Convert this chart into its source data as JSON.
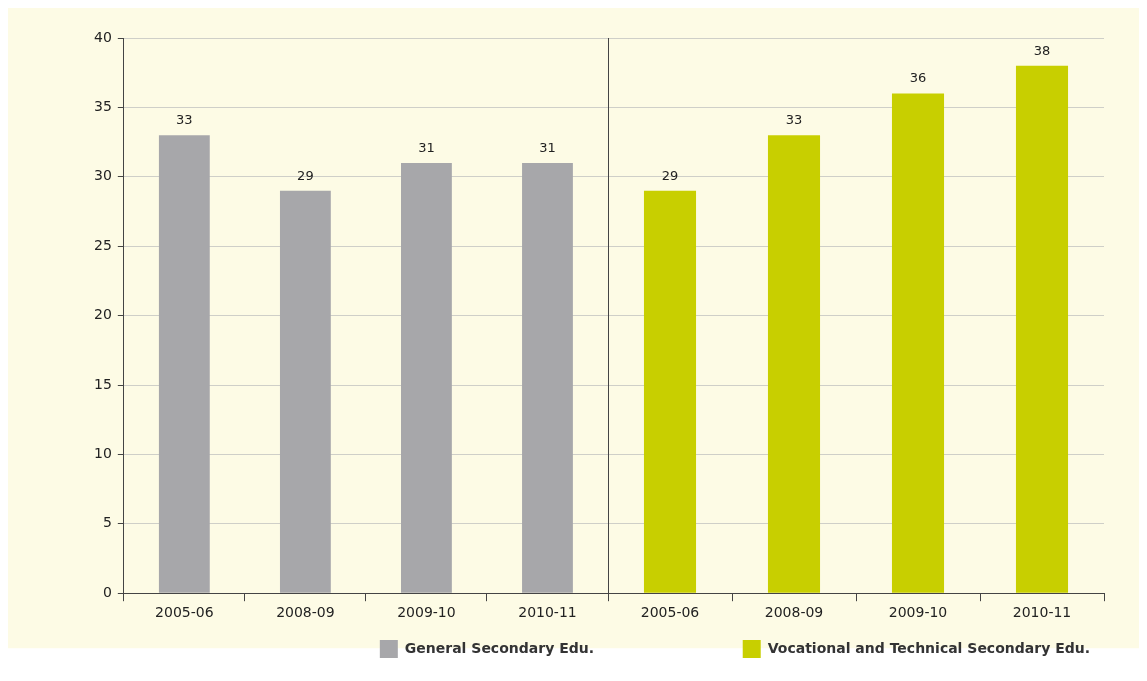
{
  "chart_data": [
    {
      "type": "bar",
      "categories": [
        "2005-06",
        "2008-09",
        "2009-10",
        "2010-11"
      ],
      "series": [
        {
          "name": "General Secondary Edu.",
          "color": "#a7a7aa",
          "values": [
            33,
            29,
            31,
            31
          ]
        }
      ],
      "ylim": [
        0,
        40
      ],
      "yticks": [
        0,
        5,
        10,
        15,
        20,
        25,
        30,
        35,
        40
      ],
      "grid": "y",
      "data_labels": true,
      "legend": "bottom right"
    },
    {
      "type": "bar",
      "categories": [
        "2005-06",
        "2008-09",
        "2009-10",
        "2010-11"
      ],
      "series": [
        {
          "name": "Vocational and Technical Secondary Edu.",
          "color": "#c8cf00",
          "values": [
            29,
            33,
            36,
            38
          ]
        }
      ],
      "ylim": [
        0,
        40
      ],
      "yticks": [
        0,
        5,
        10,
        15,
        20,
        25,
        30,
        35,
        40
      ],
      "grid": "y",
      "data_labels": true,
      "legend": "bottom right",
      "tick_labels": "x"
    }
  ]
}
